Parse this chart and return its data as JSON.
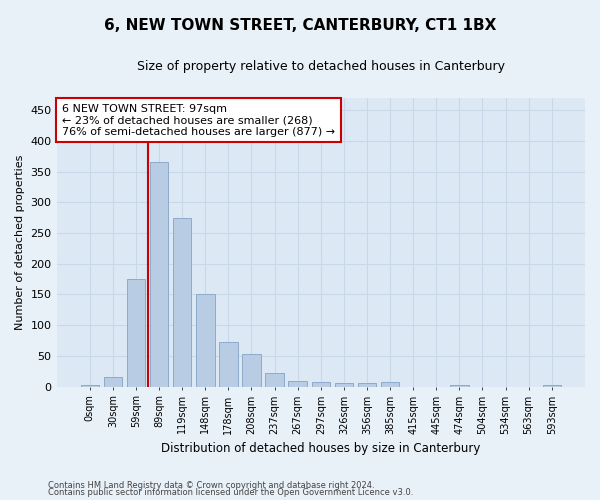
{
  "title": "6, NEW TOWN STREET, CANTERBURY, CT1 1BX",
  "subtitle": "Size of property relative to detached houses in Canterbury",
  "xlabel": "Distribution of detached houses by size in Canterbury",
  "ylabel": "Number of detached properties",
  "categories": [
    "0sqm",
    "30sqm",
    "59sqm",
    "89sqm",
    "119sqm",
    "148sqm",
    "178sqm",
    "208sqm",
    "237sqm",
    "267sqm",
    "297sqm",
    "326sqm",
    "356sqm",
    "385sqm",
    "415sqm",
    "445sqm",
    "474sqm",
    "504sqm",
    "534sqm",
    "563sqm",
    "593sqm"
  ],
  "values": [
    3,
    16,
    175,
    365,
    275,
    150,
    72,
    53,
    22,
    10,
    7,
    6,
    6,
    7,
    0,
    0,
    2,
    0,
    0,
    0,
    2
  ],
  "bar_color": "#b8cce4",
  "bar_edge_color": "#8eaacc",
  "grid_color": "#c8d8e8",
  "background_color": "#dde8f5",
  "fig_background_color": "#e8f0f8",
  "vline_x": 2.5,
  "vline_color": "#cc0000",
  "annotation_text": "6 NEW TOWN STREET: 97sqm\n← 23% of detached houses are smaller (268)\n76% of semi-detached houses are larger (877) →",
  "annotation_box_color": "#ffffff",
  "annotation_box_edge": "#cc0000",
  "ylim": [
    0,
    470
  ],
  "yticks": [
    0,
    50,
    100,
    150,
    200,
    250,
    300,
    350,
    400,
    450
  ],
  "footer1": "Contains HM Land Registry data © Crown copyright and database right 2024.",
  "footer2": "Contains public sector information licensed under the Open Government Licence v3.0."
}
